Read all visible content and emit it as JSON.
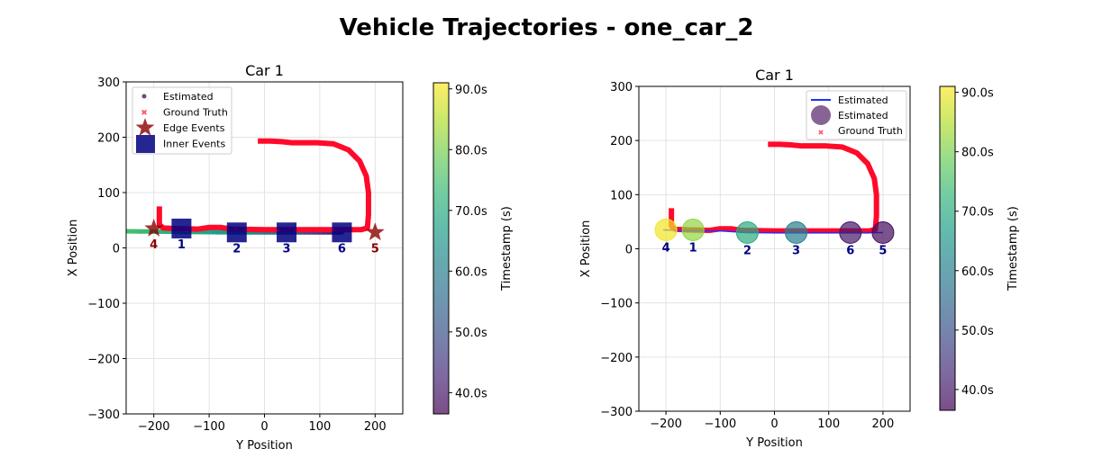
{
  "figure_title": "Vehicle Trajectories - one_car_2",
  "chart_data": [
    {
      "type": "line",
      "title": "Car 1",
      "xlabel": "Y Position",
      "ylabel": "X Position",
      "xlim": [
        -250,
        250
      ],
      "ylim": [
        -300,
        300
      ],
      "xticks": [
        -200,
        -100,
        0,
        100,
        200
      ],
      "yticks": [
        -300,
        -200,
        -100,
        0,
        100,
        200,
        300
      ],
      "grid": true,
      "legend_position": "top-left",
      "legend": [
        "Estimated",
        "Ground Truth",
        "Edge Events",
        "Inner Events"
      ],
      "ground_truth": [
        [
          -190,
          75
        ],
        [
          -190,
          42
        ],
        [
          -183,
          36
        ],
        [
          -160,
          35
        ],
        [
          -120,
          34
        ],
        [
          -100,
          37
        ],
        [
          -80,
          37
        ],
        [
          -60,
          34
        ],
        [
          0,
          33
        ],
        [
          100,
          33
        ],
        [
          175,
          33
        ],
        [
          186,
          36
        ],
        [
          188,
          60
        ],
        [
          188,
          100
        ],
        [
          184,
          130
        ],
        [
          172,
          157
        ],
        [
          152,
          177
        ],
        [
          125,
          188
        ],
        [
          95,
          190
        ],
        [
          50,
          190
        ],
        [
          30,
          192
        ],
        [
          10,
          193
        ],
        [
          -12,
          193
        ]
      ],
      "estimated_time_color": [
        [
          -250,
          30,
          75
        ],
        [
          -150,
          29,
          70
        ],
        [
          -50,
          28,
          65
        ],
        [
          40,
          28,
          55
        ],
        [
          140,
          28,
          40
        ]
      ],
      "estimated_highlight": [
        [
          -158,
          35,
          90
        ],
        [
          -138,
          33,
          88
        ]
      ],
      "events": [
        {
          "label": "4",
          "kind": "edge",
          "y": -200,
          "x": 35
        },
        {
          "label": "1",
          "kind": "inner",
          "y": -150,
          "x": 35
        },
        {
          "label": "2",
          "kind": "inner",
          "y": -50,
          "x": 28
        },
        {
          "label": "3",
          "kind": "inner",
          "y": 40,
          "x": 28
        },
        {
          "label": "6",
          "kind": "inner",
          "y": 140,
          "x": 28
        },
        {
          "label": "5",
          "kind": "edge",
          "y": 200,
          "x": 28
        }
      ],
      "colorbar": {
        "label": "Timestamp (s)",
        "range": [
          36.5,
          91
        ],
        "ticks": [
          40,
          50,
          60,
          70,
          80,
          90
        ],
        "tick_labels": [
          "40.0s",
          "50.0s",
          "60.0s",
          "70.0s",
          "80.0s",
          "90.0s"
        ]
      }
    },
    {
      "type": "line",
      "title": "Car 1",
      "xlabel": "Y Position",
      "ylabel": "X Position",
      "xlim": [
        -250,
        250
      ],
      "ylim": [
        -300,
        300
      ],
      "xticks": [
        -200,
        -100,
        0,
        100,
        200
      ],
      "yticks": [
        -300,
        -200,
        -100,
        0,
        100,
        200,
        300
      ],
      "grid": true,
      "legend_position": "top-right",
      "legend": [
        "Estimated",
        "Estimated",
        "Ground Truth"
      ],
      "ground_truth": [
        [
          -190,
          75
        ],
        [
          -190,
          42
        ],
        [
          -183,
          36
        ],
        [
          -160,
          35
        ],
        [
          -120,
          34
        ],
        [
          -100,
          37
        ],
        [
          -80,
          37
        ],
        [
          -60,
          34
        ],
        [
          0,
          33
        ],
        [
          100,
          33
        ],
        [
          175,
          33
        ],
        [
          186,
          36
        ],
        [
          188,
          60
        ],
        [
          188,
          100
        ],
        [
          184,
          130
        ],
        [
          172,
          157
        ],
        [
          152,
          177
        ],
        [
          125,
          188
        ],
        [
          95,
          190
        ],
        [
          50,
          190
        ],
        [
          30,
          192
        ],
        [
          10,
          193
        ],
        [
          -12,
          193
        ]
      ],
      "estimated_line": [
        [
          -205,
          35
        ],
        [
          -150,
          33
        ],
        [
          -100,
          33
        ],
        [
          -50,
          30
        ],
        [
          40,
          30
        ],
        [
          140,
          30
        ],
        [
          200,
          30
        ]
      ],
      "events": [
        {
          "label": "4",
          "t": 90,
          "y": -200,
          "x": 35
        },
        {
          "label": "1",
          "t": 82,
          "y": -150,
          "x": 35
        },
        {
          "label": "2",
          "t": 70,
          "y": -50,
          "x": 30
        },
        {
          "label": "3",
          "t": 60,
          "y": 40,
          "x": 30
        },
        {
          "label": "6",
          "t": 40,
          "y": 140,
          "x": 30
        },
        {
          "label": "5",
          "t": 38,
          "y": 200,
          "x": 30
        }
      ],
      "colorbar": {
        "label": "Timestamp (s)",
        "range": [
          36.5,
          91
        ],
        "ticks": [
          40,
          50,
          60,
          70,
          80,
          90
        ],
        "tick_labels": [
          "40.0s",
          "50.0s",
          "60.0s",
          "70.0s",
          "80.0s",
          "90.0s"
        ]
      }
    }
  ]
}
